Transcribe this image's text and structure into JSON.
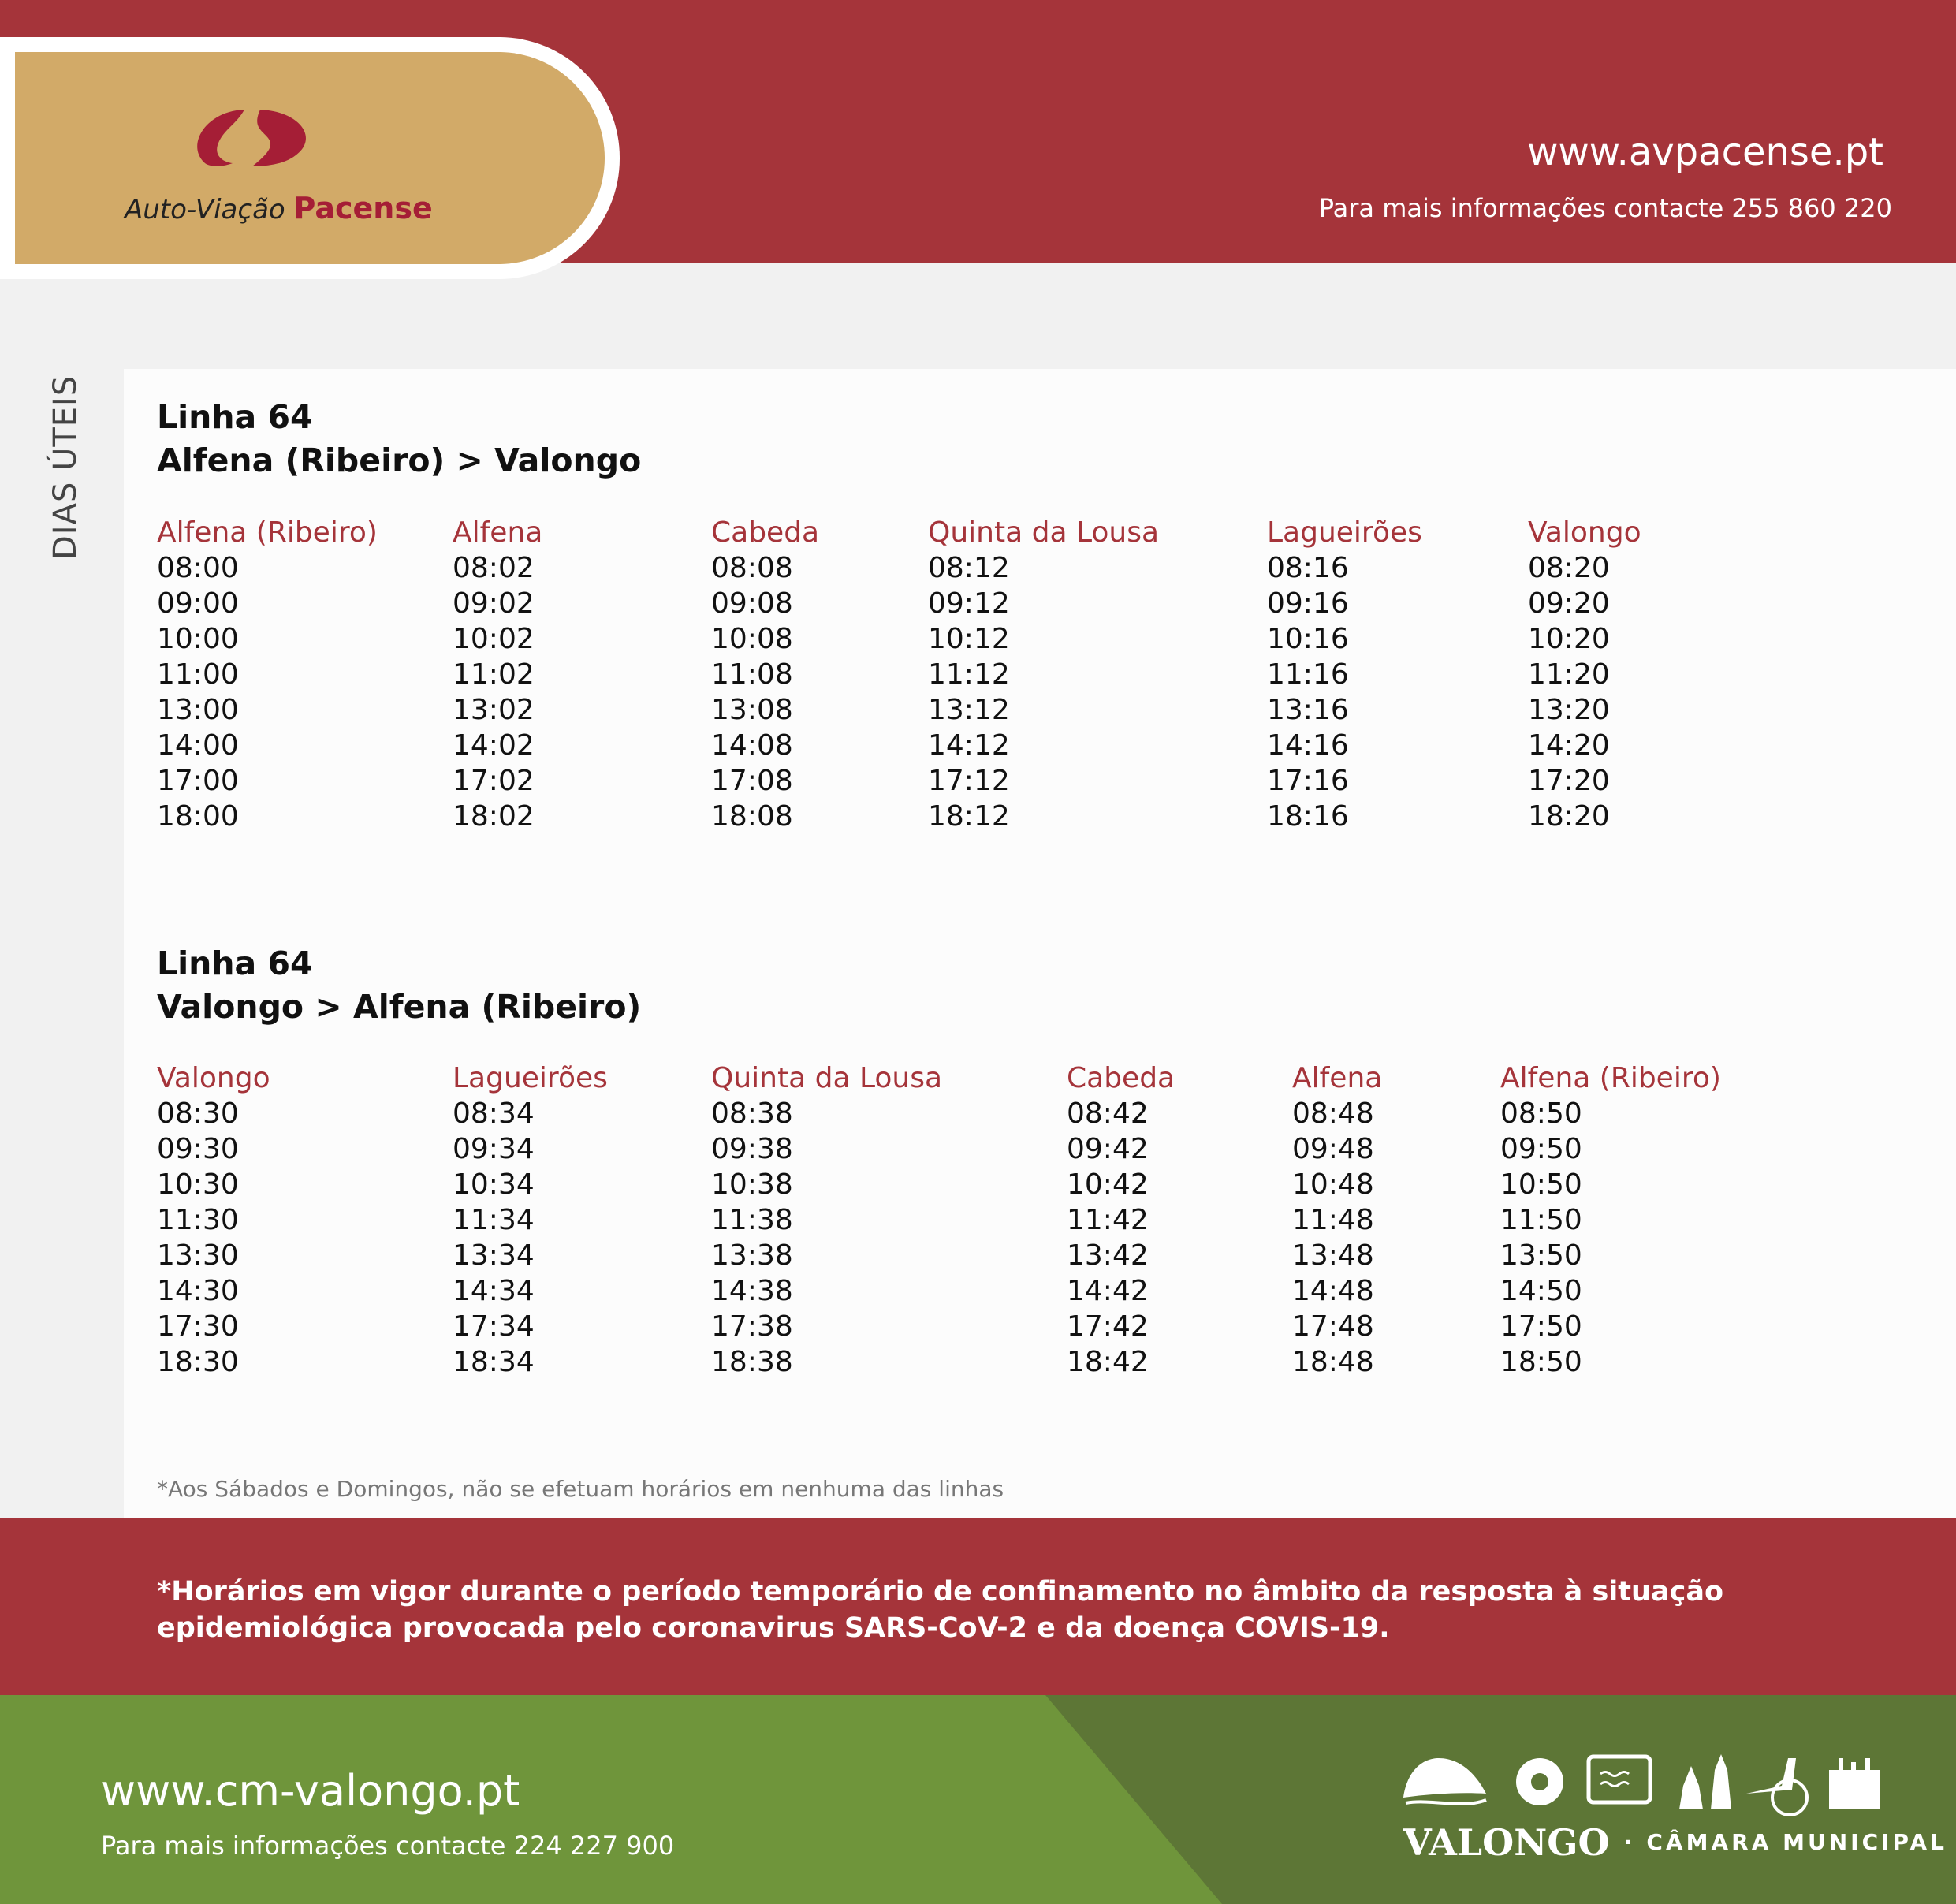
{
  "header": {
    "brand_prefix": "Auto-Viação",
    "brand_name": "Pacense",
    "website": "www.avpacense.pt",
    "info": "Para mais informações contacte 255 860 220",
    "colors": {
      "header_red": "#a5343a",
      "logo_tan": "#d2aa68",
      "logo_mark": "#a51e36"
    }
  },
  "side_label": "DIAS ÚTEIS",
  "tables": [
    {
      "title_line": "Linha 64",
      "route": "Alfena (Ribeiro) > Valongo",
      "columns": [
        {
          "stop": "Alfena (Ribeiro)",
          "times": [
            "08:00",
            "09:00",
            "10:00",
            "11:00",
            "13:00",
            "14:00",
            "17:00",
            "18:00"
          ]
        },
        {
          "stop": "Alfena",
          "times": [
            "08:02",
            "09:02",
            "10:02",
            "11:02",
            "13:02",
            "14:02",
            "17:02",
            "18:02"
          ]
        },
        {
          "stop": "Cabeda",
          "times": [
            "08:08",
            "09:08",
            "10:08",
            "11:08",
            "13:08",
            "14:08",
            "17:08",
            "18:08"
          ]
        },
        {
          "stop": "Quinta da Lousa",
          "times": [
            "08:12",
            "09:12",
            "10:12",
            "11:12",
            "13:12",
            "14:12",
            "17:12",
            "18:12"
          ]
        },
        {
          "stop": "Lagueirões",
          "times": [
            "08:16",
            "09:16",
            "10:16",
            "11:16",
            "13:16",
            "14:16",
            "17:16",
            "18:16"
          ]
        },
        {
          "stop": "Valongo",
          "times": [
            "08:20",
            "09:20",
            "10:20",
            "11:20",
            "13:20",
            "14:20",
            "17:20",
            "18:20"
          ]
        }
      ]
    },
    {
      "title_line": "Linha 64",
      "route": "Valongo > Alfena (Ribeiro)",
      "columns": [
        {
          "stop": "Valongo",
          "times": [
            "08:30",
            "09:30",
            "10:30",
            "11:30",
            "13:30",
            "14:30",
            "17:30",
            "18:30"
          ]
        },
        {
          "stop": "Lagueirões",
          "times": [
            "08:34",
            "09:34",
            "10:34",
            "11:34",
            "13:34",
            "14:34",
            "17:34",
            "18:34"
          ]
        },
        {
          "stop": "Quinta da Lousa",
          "times": [
            "08:38",
            "09:38",
            "10:38",
            "11:38",
            "13:38",
            "14:38",
            "17:38",
            "18:38"
          ]
        },
        {
          "stop": "Cabeda",
          "times": [
            "08:42",
            "09:42",
            "10:42",
            "11:42",
            "13:42",
            "14:42",
            "17:42",
            "18:42"
          ]
        },
        {
          "stop": "Alfena",
          "times": [
            "08:48",
            "09:48",
            "10:48",
            "11:48",
            "13:48",
            "14:48",
            "17:48",
            "18:48"
          ]
        },
        {
          "stop": "Alfena (Ribeiro)",
          "times": [
            "08:50",
            "09:50",
            "10:50",
            "11:50",
            "13:50",
            "14:50",
            "17:50",
            "18:50"
          ]
        }
      ]
    }
  ],
  "note": "*Aos Sábados e Domingos, não se efetuam horários em nenhuma das linhas",
  "notice": {
    "line1": "*Horários em vigor durante o período temporário de confinamento no âmbito da resposta à situação",
    "line2": "epidemiológica provocada pelo coronavirus SARS-CoV-2 e da doença COVIS-19."
  },
  "footer": {
    "website": "www.cm-valongo.pt",
    "info": "Para mais informações contacte 224 227 900",
    "logo_name": "VALONGO",
    "logo_sub": "· CÂMARA MUNICIPAL",
    "colors": {
      "green": "#6f953b",
      "dark_green": "#5d7636"
    }
  }
}
